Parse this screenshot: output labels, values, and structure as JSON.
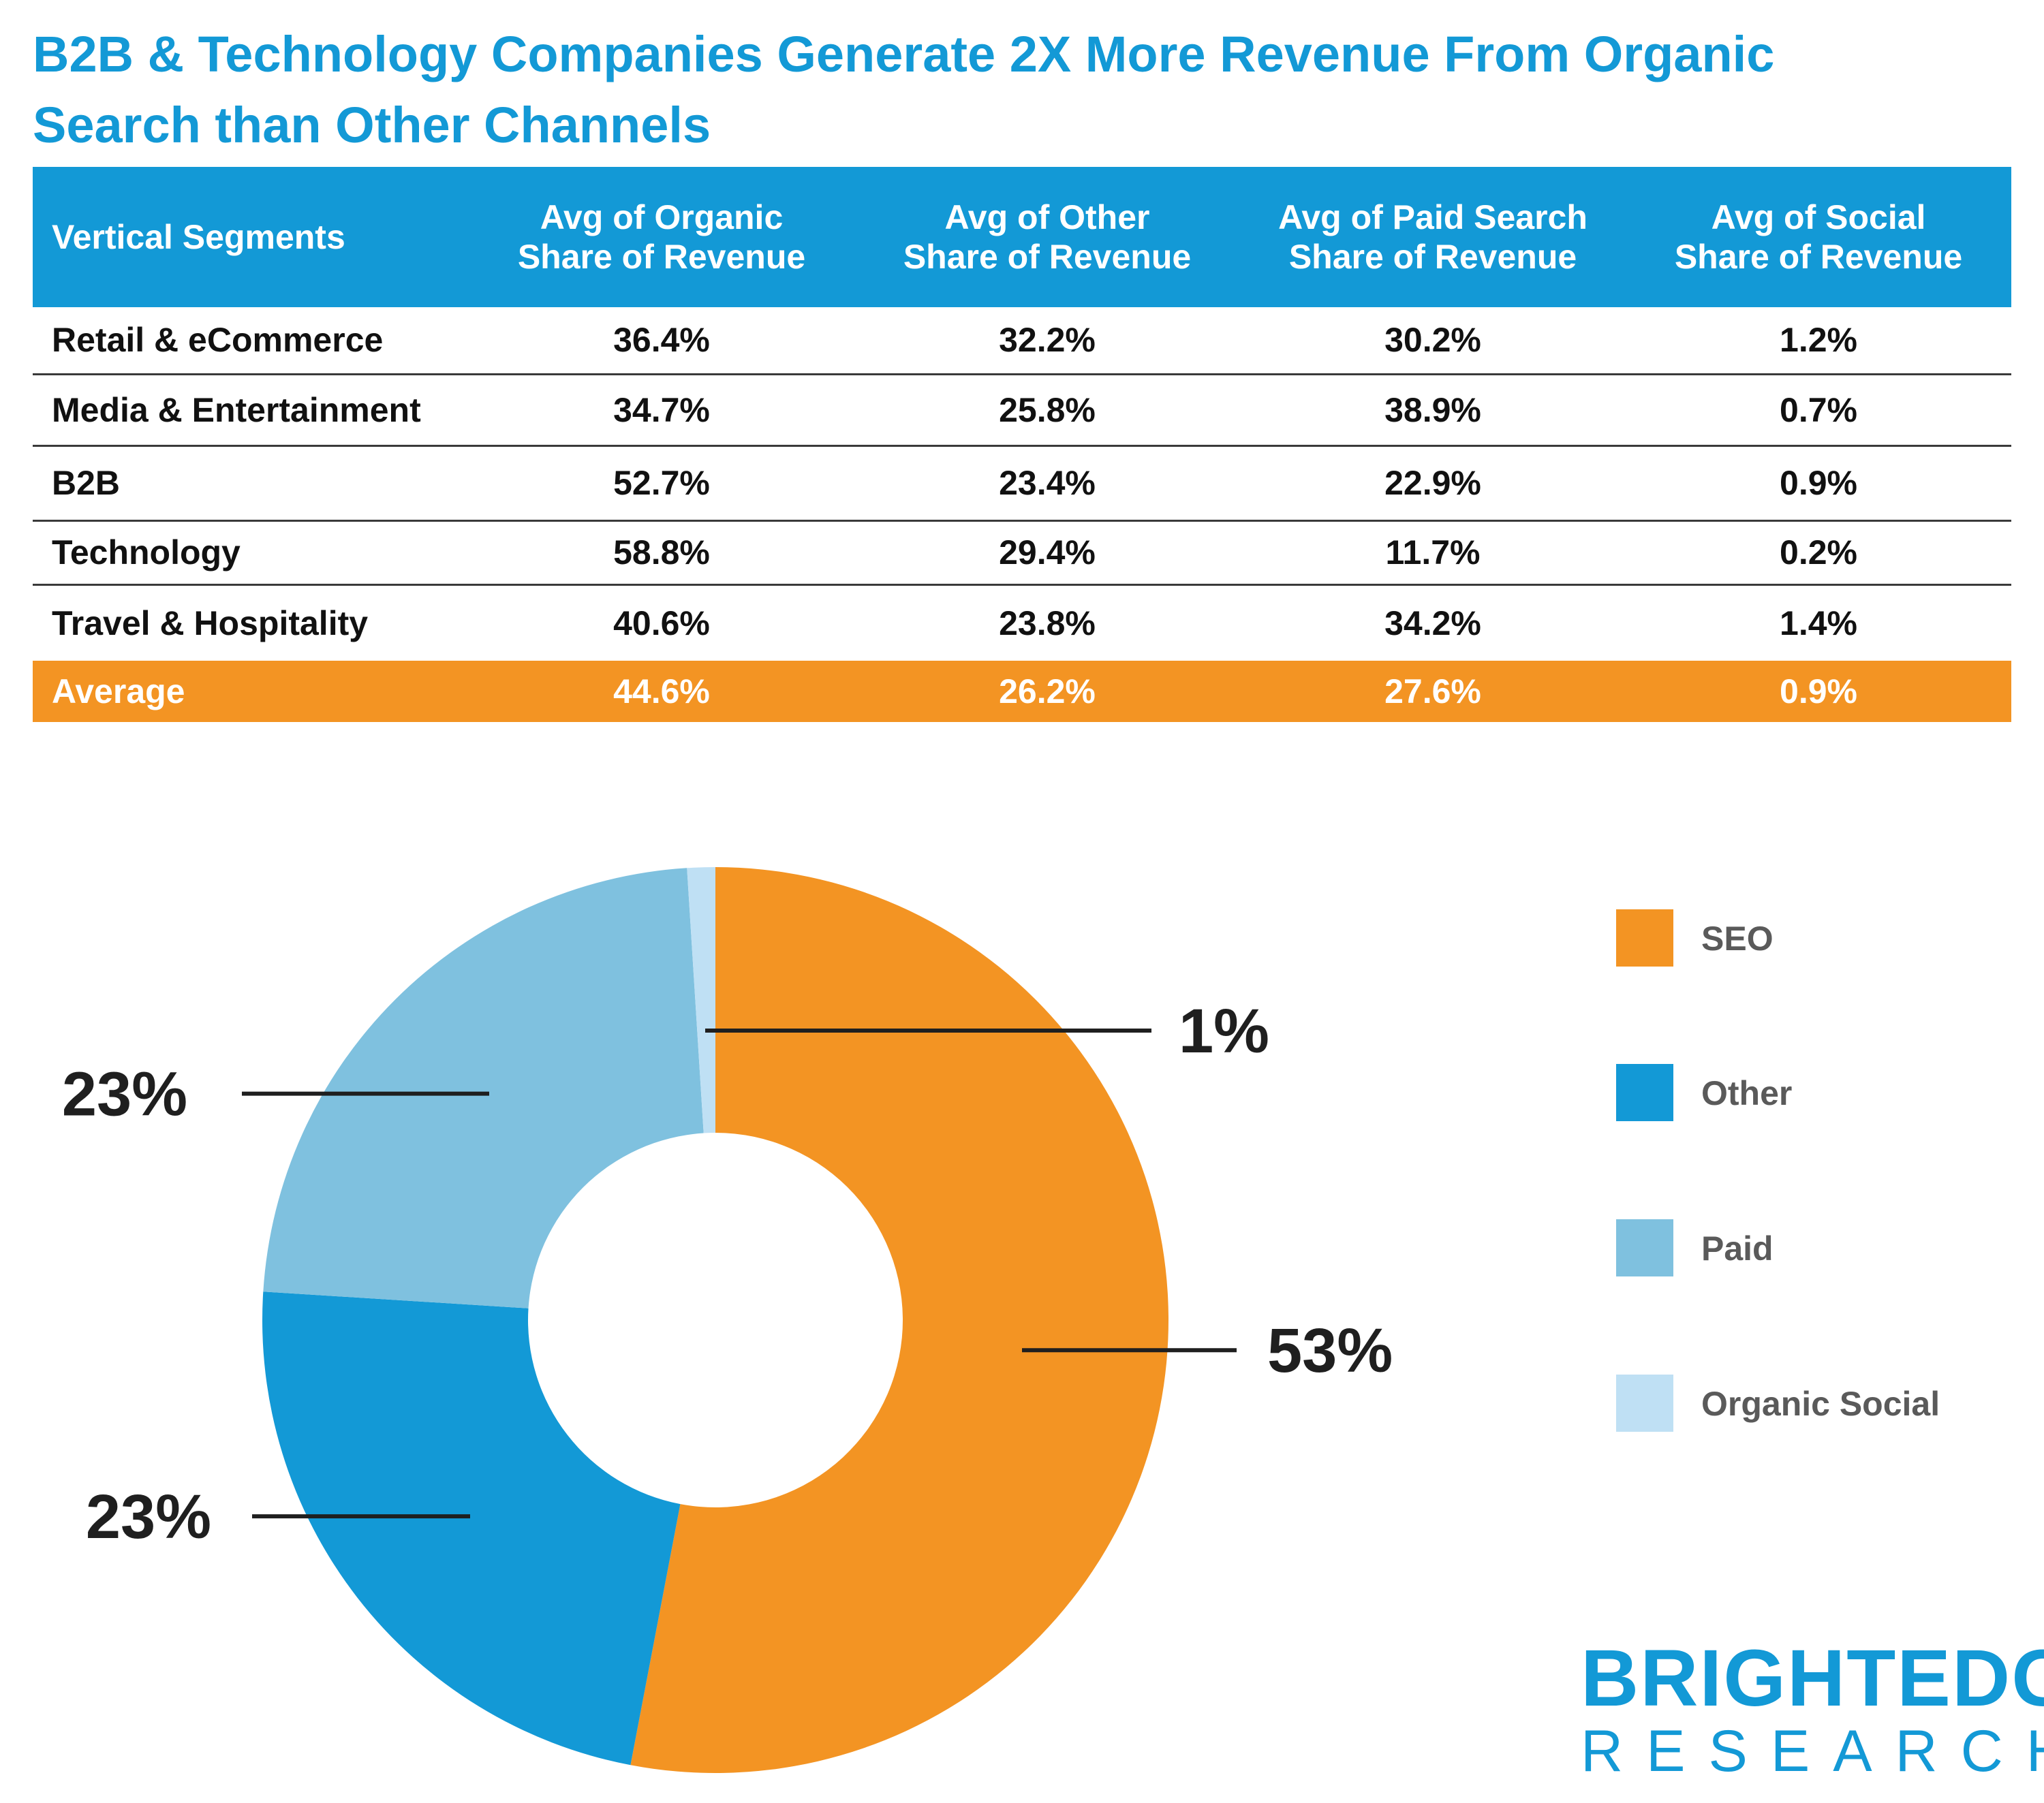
{
  "title": "B2B & Technology Companies Generate 2X More Revenue From Organic Search than Other Channels",
  "table": {
    "headers": [
      "Vertical Segments",
      "Avg of Organic Share of Revenue",
      "Avg of Other Share of Revenue",
      "Avg of Paid Search Share of Revenue",
      "Avg of Social Share of Revenue"
    ],
    "header_lines": [
      [
        "Vertical Segments"
      ],
      [
        "Avg of Organic",
        "Share of Revenue"
      ],
      [
        "Avg of Other",
        "Share of Revenue"
      ],
      [
        "Avg of Paid Search",
        "Share of Revenue"
      ],
      [
        "Avg of Social",
        "Share of Revenue"
      ]
    ],
    "rows": [
      [
        "Retail & eCommerce",
        "36.4%",
        "32.2%",
        "30.2%",
        "1.2%"
      ],
      [
        "Media & Entertainment",
        "34.7%",
        "25.8%",
        "38.9%",
        "0.7%"
      ],
      [
        "B2B",
        "52.7%",
        "23.4%",
        "22.9%",
        "0.9%"
      ],
      [
        "Technology",
        "58.8%",
        "29.4%",
        "11.7%",
        "0.2%"
      ],
      [
        "Travel & Hospitality",
        "40.6%",
        "23.8%",
        "34.2%",
        "1.4%"
      ]
    ],
    "average": [
      "Average",
      "44.6%",
      "26.2%",
      "27.6%",
      "0.9%"
    ]
  },
  "chart_data": {
    "type": "pie",
    "donut": true,
    "title": "",
    "categories": [
      "SEO",
      "Other",
      "Paid",
      "Organic Social"
    ],
    "values": [
      53,
      23,
      23,
      1
    ],
    "labels": [
      "53%",
      "23%",
      "23%",
      "1%"
    ],
    "colors": [
      "#f39423",
      "#1399d6",
      "#7fc1df",
      "#bfe0f4"
    ],
    "legend_position": "right"
  },
  "brand": {
    "line1": "BRIGHTEDGE",
    "line2": "RESEARCH"
  }
}
